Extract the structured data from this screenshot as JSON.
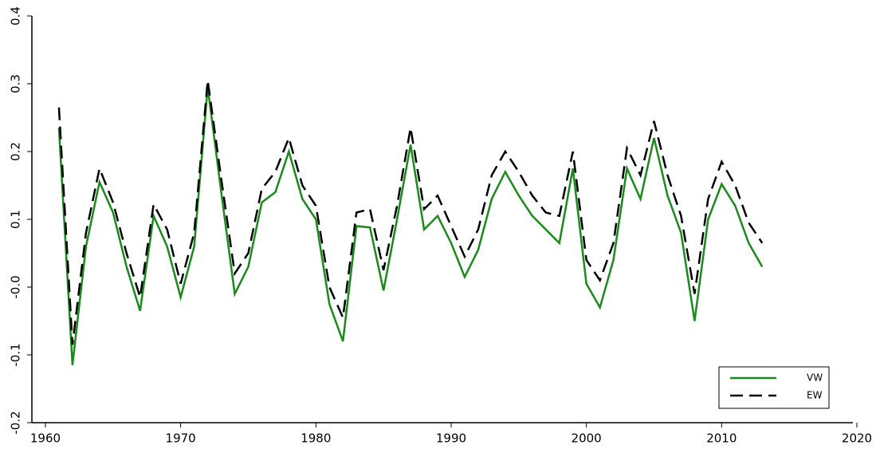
{
  "chart_data": {
    "type": "line",
    "x": [
      1961,
      1962,
      1963,
      1964,
      1965,
      1966,
      1967,
      1968,
      1969,
      1970,
      1971,
      1972,
      1973,
      1974,
      1975,
      1976,
      1977,
      1978,
      1979,
      1980,
      1981,
      1982,
      1983,
      1984,
      1985,
      1986,
      1987,
      1988,
      1989,
      1990,
      1991,
      1992,
      1993,
      1994,
      1995,
      1996,
      1997,
      1998,
      1999,
      2000,
      2001,
      2002,
      2003,
      2004,
      2005,
      2006,
      2007,
      2008,
      2009,
      2010,
      2011,
      2012,
      2013
    ],
    "series": [
      {
        "name": "VW",
        "color": "#1a8a1a",
        "dash": false,
        "values": [
          0.235,
          -0.115,
          0.06,
          0.155,
          0.11,
          0.03,
          -0.035,
          0.105,
          0.06,
          -0.015,
          0.06,
          0.295,
          0.14,
          -0.01,
          0.03,
          0.125,
          0.14,
          0.2,
          0.13,
          0.1,
          -0.025,
          -0.08,
          0.09,
          0.088,
          -0.005,
          0.1,
          0.21,
          0.085,
          0.105,
          0.065,
          0.015,
          0.055,
          0.13,
          0.17,
          0.135,
          0.105,
          0.085,
          0.065,
          0.175,
          0.005,
          -0.03,
          0.04,
          0.175,
          0.13,
          0.22,
          0.135,
          0.08,
          -0.05,
          0.1,
          0.152,
          0.12,
          0.065,
          0.03
        ]
      },
      {
        "name": "EW",
        "color": "#000000",
        "dash": true,
        "values": [
          0.265,
          -0.085,
          0.08,
          0.175,
          0.125,
          0.05,
          -0.015,
          0.122,
          0.085,
          0.005,
          0.08,
          0.305,
          0.16,
          0.02,
          0.05,
          0.145,
          0.17,
          0.22,
          0.15,
          0.12,
          0.0,
          -0.045,
          0.11,
          0.115,
          0.025,
          0.12,
          0.235,
          0.115,
          0.135,
          0.09,
          0.045,
          0.085,
          0.165,
          0.2,
          0.17,
          0.135,
          0.11,
          0.105,
          0.2,
          0.04,
          0.01,
          0.065,
          0.205,
          0.165,
          0.245,
          0.165,
          0.105,
          -0.01,
          0.13,
          0.185,
          0.15,
          0.095,
          0.065
        ]
      }
    ],
    "xlim": [
      1959,
      2020
    ],
    "xticks": [
      1960,
      1970,
      1980,
      1990,
      2000,
      2010,
      2020
    ],
    "ylim": [
      -0.2,
      0.4
    ],
    "yticks": [
      -0.2,
      -0.1,
      {
        "value": 0,
        "label": "-0.0"
      },
      0.1,
      0.2,
      0.3,
      0.4
    ],
    "legend": "lower right"
  }
}
